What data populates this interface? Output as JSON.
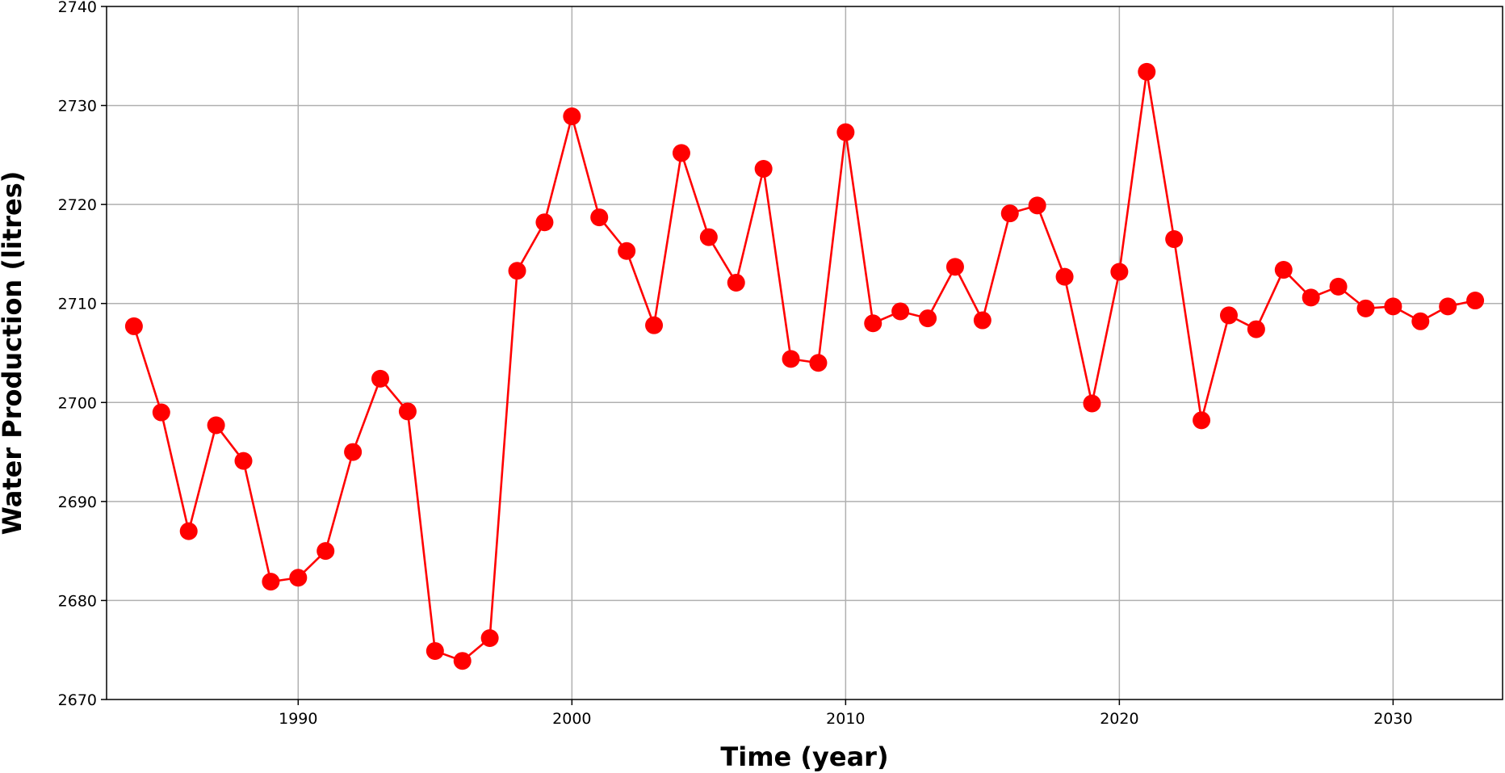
{
  "chart_data": {
    "type": "line",
    "title": "",
    "xlabel": "Time (year)",
    "ylabel": "Water Production (litres)",
    "xlim": [
      1983,
      2034
    ],
    "ylim": [
      2670,
      2740
    ],
    "xticks": [
      1990,
      2000,
      2010,
      2020,
      2030
    ],
    "yticks": [
      2670,
      2680,
      2690,
      2700,
      2710,
      2720,
      2730,
      2740
    ],
    "grid": true,
    "color": "#ff0000",
    "marker": "circle",
    "series": [
      {
        "x": [
          1984,
          1985,
          1986,
          1987,
          1988,
          1989,
          1990,
          1991,
          1992,
          1993,
          1994,
          1995,
          1996,
          1997,
          1998,
          1999,
          2000,
          2001,
          2002,
          2003,
          2004,
          2005,
          2006,
          2007,
          2008,
          2009,
          2010,
          2011,
          2012,
          2013,
          2014,
          2015,
          2016,
          2017,
          2018,
          2019,
          2020,
          2021,
          2022,
          2023,
          2024,
          2025,
          2026,
          2027,
          2028,
          2029,
          2030,
          2031,
          2032,
          2033
        ],
        "values": [
          2707.7,
          2699.0,
          2687.0,
          2697.7,
          2694.1,
          2681.9,
          2682.3,
          2685.0,
          2695.0,
          2702.4,
          2699.1,
          2674.9,
          2673.9,
          2676.2,
          2713.3,
          2718.2,
          2728.9,
          2718.7,
          2715.3,
          2707.8,
          2725.2,
          2716.7,
          2712.1,
          2723.6,
          2704.4,
          2704.0,
          2727.3,
          2708.0,
          2709.2,
          2708.5,
          2713.7,
          2708.3,
          2719.1,
          2719.9,
          2712.7,
          2699.9,
          2713.2,
          2733.4,
          2716.5,
          2698.2,
          2708.8,
          2707.4,
          2713.4,
          2710.6,
          2711.7,
          2709.5,
          2709.7,
          2708.2,
          2709.7,
          2710.3
        ]
      }
    ]
  }
}
